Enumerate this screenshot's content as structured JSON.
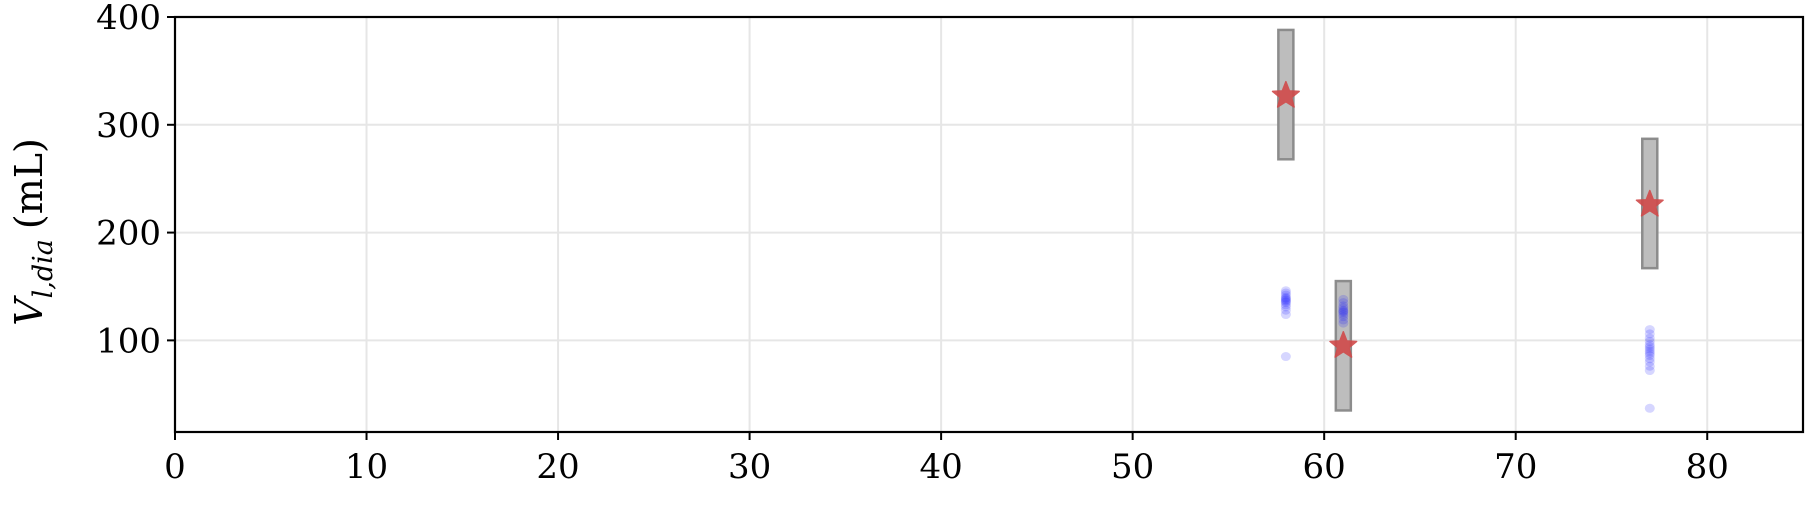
{
  "chart_data": {
    "type": "scatter",
    "title": "",
    "xlabel": "",
    "ylabel": {
      "var": "V",
      "sub": "l,dia",
      "unit": "(mL)"
    },
    "xlim": [
      0,
      85
    ],
    "ylim": [
      15,
      400
    ],
    "x_ticks": [
      0,
      10,
      20,
      30,
      40,
      50,
      60,
      70,
      80
    ],
    "y_ticks": [
      100,
      200,
      300,
      400
    ],
    "grid": true,
    "colors": {
      "samples": "#1a1aff",
      "reference": "#d04a4a",
      "range_fill": "#bdbdbd",
      "range_edge": "#8c8c8c",
      "grid": "#e6e6e6"
    },
    "ranges": [
      {
        "x": 58,
        "low": 268,
        "high": 388
      },
      {
        "x": 61,
        "low": 35,
        "high": 155
      },
      {
        "x": 77,
        "low": 167,
        "high": 287
      }
    ],
    "reference_points": [
      {
        "x": 58,
        "y": 327
      },
      {
        "x": 61,
        "y": 95
      },
      {
        "x": 77,
        "y": 226
      }
    ],
    "sample_points": [
      {
        "x": 58,
        "y": 146
      },
      {
        "x": 58,
        "y": 144
      },
      {
        "x": 58,
        "y": 142
      },
      {
        "x": 58,
        "y": 140
      },
      {
        "x": 58,
        "y": 139
      },
      {
        "x": 58,
        "y": 138
      },
      {
        "x": 58,
        "y": 137
      },
      {
        "x": 58,
        "y": 136
      },
      {
        "x": 58,
        "y": 135
      },
      {
        "x": 58,
        "y": 133
      },
      {
        "x": 58,
        "y": 131
      },
      {
        "x": 58,
        "y": 128
      },
      {
        "x": 58,
        "y": 124
      },
      {
        "x": 58,
        "y": 85
      },
      {
        "x": 61,
        "y": 138
      },
      {
        "x": 61,
        "y": 135
      },
      {
        "x": 61,
        "y": 132
      },
      {
        "x": 61,
        "y": 130
      },
      {
        "x": 61,
        "y": 128
      },
      {
        "x": 61,
        "y": 127
      },
      {
        "x": 61,
        "y": 126
      },
      {
        "x": 61,
        "y": 124
      },
      {
        "x": 61,
        "y": 122
      },
      {
        "x": 61,
        "y": 119
      },
      {
        "x": 61,
        "y": 116
      },
      {
        "x": 77,
        "y": 110
      },
      {
        "x": 77,
        "y": 106
      },
      {
        "x": 77,
        "y": 102
      },
      {
        "x": 77,
        "y": 99
      },
      {
        "x": 77,
        "y": 96
      },
      {
        "x": 77,
        "y": 94
      },
      {
        "x": 77,
        "y": 92
      },
      {
        "x": 77,
        "y": 90
      },
      {
        "x": 77,
        "y": 88
      },
      {
        "x": 77,
        "y": 86
      },
      {
        "x": 77,
        "y": 83
      },
      {
        "x": 77,
        "y": 80
      },
      {
        "x": 77,
        "y": 76
      },
      {
        "x": 77,
        "y": 72
      },
      {
        "x": 77,
        "y": 37
      }
    ]
  }
}
